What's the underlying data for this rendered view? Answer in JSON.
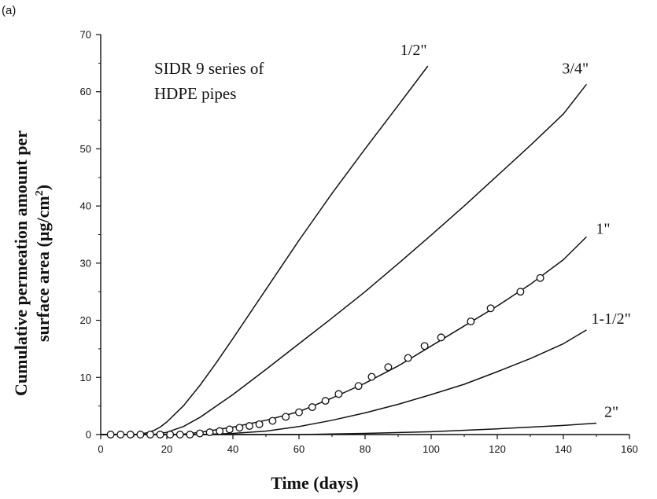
{
  "panel_label": "(a)",
  "chart_data": {
    "type": "line",
    "title": "",
    "annotation_lines": [
      "SIDR 9 series of",
      "HDPE pipes"
    ],
    "xlabel": "Time (days)",
    "ylabel_line1": "Cumulative permeation amount per",
    "ylabel_line2_prefix": "surface area (µg/cm",
    "ylabel_superscript": "2",
    "ylabel_line2_suffix": ")",
    "xlim": [
      0,
      160
    ],
    "ylim": [
      0,
      70
    ],
    "xticks": [
      0,
      20,
      40,
      60,
      80,
      100,
      120,
      140,
      160
    ],
    "yticks": [
      0,
      10,
      20,
      30,
      40,
      50,
      60,
      70
    ],
    "grid": false,
    "series": [
      {
        "name": "1/2\"",
        "style": "line",
        "x": [
          0,
          10,
          12,
          14,
          16,
          18,
          20,
          25,
          30,
          35,
          40,
          50,
          60,
          70,
          80,
          90,
          99
        ],
        "y": [
          0,
          0,
          0.1,
          0.3,
          0.7,
          1.3,
          2.2,
          5.0,
          8.6,
          12.6,
          16.8,
          25.4,
          34.0,
          42.2,
          50.0,
          57.6,
          64.5
        ]
      },
      {
        "name": "3/4\"",
        "style": "line",
        "x": [
          0,
          16,
          20,
          25,
          30,
          40,
          50,
          60,
          70,
          80,
          90,
          100,
          110,
          120,
          130,
          140,
          147
        ],
        "y": [
          0,
          0,
          0.4,
          1.4,
          3.0,
          7.0,
          11.4,
          15.9,
          20.4,
          25.0,
          29.9,
          34.9,
          40.0,
          45.3,
          50.6,
          56.1,
          61.3
        ]
      },
      {
        "name": "1\"",
        "style": "line",
        "x": [
          0,
          24,
          30,
          40,
          50,
          60,
          70,
          80,
          90,
          100,
          110,
          120,
          130,
          140,
          147
        ],
        "y": [
          0,
          0,
          0.4,
          1.3,
          2.5,
          4.0,
          6.4,
          9.0,
          12.0,
          15.5,
          19.0,
          22.5,
          26.3,
          30.6,
          34.6
        ]
      },
      {
        "name": "1-1/2\"",
        "style": "line",
        "x": [
          0,
          30,
          40,
          50,
          60,
          70,
          80,
          90,
          100,
          110,
          120,
          130,
          140,
          147
        ],
        "y": [
          0,
          0,
          0.2,
          0.6,
          1.4,
          2.5,
          3.8,
          5.3,
          7.0,
          8.8,
          11.0,
          13.3,
          15.9,
          18.3
        ]
      },
      {
        "name": "2\"",
        "style": "line",
        "x": [
          0,
          60,
          80,
          100,
          120,
          140,
          150
        ],
        "y": [
          0,
          0,
          0.2,
          0.5,
          1.0,
          1.6,
          2.0
        ]
      },
      {
        "name": "measured (1\")",
        "style": "markers",
        "x": [
          3,
          6,
          9,
          12,
          15,
          18,
          21,
          24,
          27,
          30,
          33,
          36,
          39,
          42,
          45,
          48,
          52,
          56,
          60,
          64,
          68,
          72,
          78,
          82,
          87,
          93,
          98,
          103,
          112,
          118,
          127,
          133
        ],
        "y": [
          0,
          0,
          0,
          0,
          0,
          0,
          0,
          0,
          0,
          0.2,
          0.4,
          0.6,
          0.9,
          1.2,
          1.5,
          1.8,
          2.4,
          3.1,
          3.9,
          4.8,
          5.9,
          7.1,
          8.5,
          10.1,
          11.8,
          13.4,
          15.5,
          17.0,
          19.8,
          22.1,
          25.0,
          27.4
        ]
      }
    ]
  }
}
